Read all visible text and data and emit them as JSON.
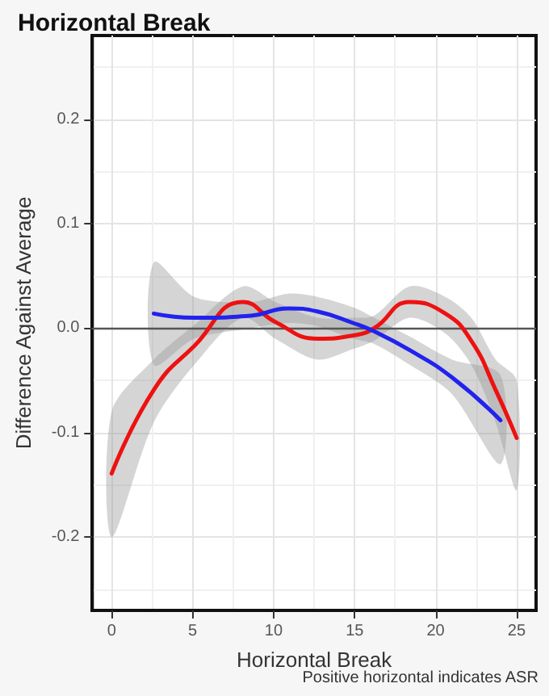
{
  "chart_data": {
    "type": "line",
    "title": "Horizontal Break",
    "xlabel": "Horizontal Break",
    "ylabel": "Difference Against Average",
    "annotations": [
      "Positive horizontal indicates ASR"
    ],
    "xlim": [
      -1.2,
      26.2
    ],
    "ylim": [
      -0.27,
      0.28
    ],
    "xticks": [
      0,
      5,
      10,
      15,
      20,
      25
    ],
    "yticks": [
      {
        "value": -0.2,
        "label": "-0.2"
      },
      {
        "value": -0.1,
        "label": "-0.1"
      },
      {
        "value": 0,
        "label": "0.0"
      },
      {
        "value": 0.1,
        "label": "0.1"
      },
      {
        "value": 0.2,
        "label": "0.2"
      }
    ],
    "grid": true,
    "marker": "none",
    "line_style": "solid",
    "ref_lines": [
      {
        "axis": "y",
        "value": 0,
        "color": "#555555"
      }
    ],
    "series": [
      {
        "color": "#ee1111",
        "x": [
          0,
          2.6,
          5.1,
          8.1,
          10.1,
          12.7,
          14.9,
          16.2,
          18.4,
          20.6,
          22.2,
          23.7,
          25
        ],
        "values": [
          -0.139,
          -0.059,
          -0.017,
          0.025,
          0.006,
          -0.01,
          -0.007,
          0,
          0.025,
          0.014,
          -0.012,
          -0.059,
          -0.105
        ],
        "lower": [
          -0.2,
          -0.09,
          -0.035,
          0.01,
          -0.01,
          -0.03,
          -0.02,
          -0.012,
          0.01,
          -0.005,
          -0.035,
          -0.09,
          -0.155
        ],
        "upper": [
          -0.08,
          -0.03,
          0.003,
          0.04,
          0.025,
          0.01,
          0.01,
          0.012,
          0.04,
          0.03,
          0.01,
          -0.03,
          -0.05
        ]
      },
      {
        "color": "#2222ee",
        "x": [
          2.6,
          5.1,
          8.6,
          10.9,
          12.7,
          14.9,
          16.2,
          18.4,
          21,
          24
        ],
        "values": [
          0.014,
          0.01,
          0.012,
          0.019,
          0.016,
          0.005,
          -0.003,
          -0.021,
          -0.047,
          -0.088
        ],
        "lower": [
          -0.035,
          -0.01,
          0,
          0.005,
          0.002,
          -0.01,
          -0.015,
          -0.035,
          -0.063,
          -0.13
        ],
        "upper": [
          0.063,
          0.03,
          0.025,
          0.033,
          0.03,
          0.02,
          0.01,
          -0.008,
          -0.03,
          -0.045
        ]
      }
    ]
  }
}
